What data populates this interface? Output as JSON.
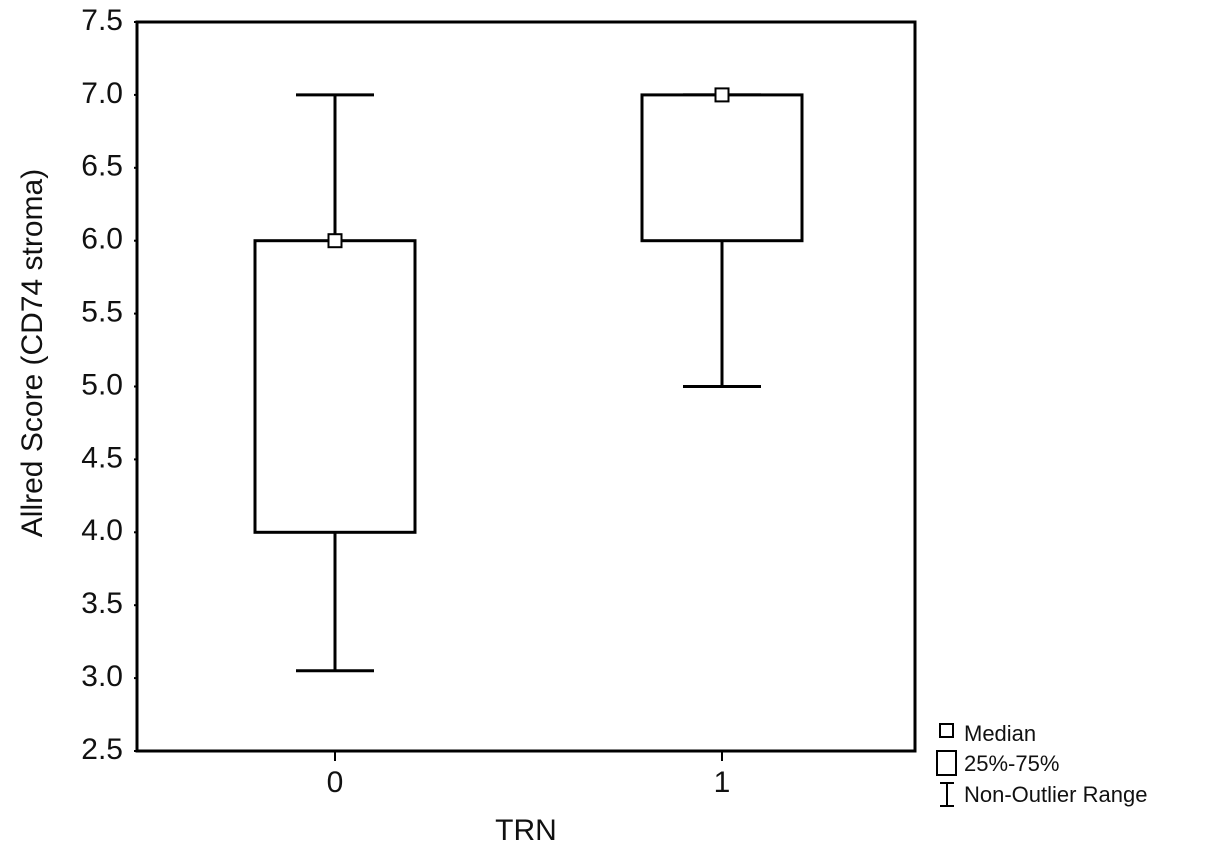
{
  "chart_data": {
    "type": "box",
    "x_label": "TRN",
    "y_label": "Allred Score (CD74 stroma)",
    "categories": [
      "0",
      "1"
    ],
    "min": [
      3.05,
      5.0
    ],
    "q1": [
      4.0,
      6.0
    ],
    "median": [
      6.0,
      7.0
    ],
    "q3": [
      6.0,
      7.0
    ],
    "max": [
      7.0,
      7.0
    ],
    "ylim": [
      2.5,
      7.5
    ],
    "yticks": [
      2.5,
      {
        "value": 3,
        "label": "3.0"
      },
      3.5,
      {
        "value": 4,
        "label": "4.0"
      },
      4.5,
      {
        "value": 5,
        "label": "5.0"
      },
      5.5,
      {
        "value": 6,
        "label": "6.0"
      },
      6.5,
      {
        "value": 7,
        "label": "7.0"
      },
      7.5
    ],
    "legend": [
      "Median",
      "25%-75%",
      "Non-Outlier Range"
    ],
    "color": "#000000",
    "grid": false
  }
}
